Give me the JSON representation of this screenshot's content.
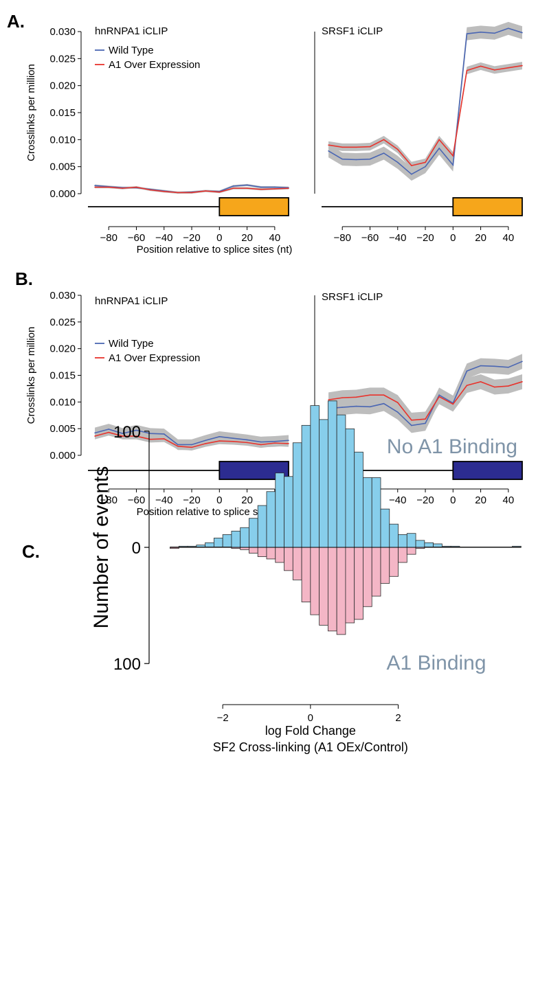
{
  "panels": {
    "A": {
      "label": "A."
    },
    "B": {
      "label": "B."
    },
    "C": {
      "label": "C."
    }
  },
  "chart_data": [
    {
      "id": "A1",
      "type": "line",
      "panel": "A",
      "title": "hnRNPA1 iCLIP",
      "ylabel": "Crosslinks per million",
      "xlabel": "Position relative to splice sites (nt)",
      "ylim": [
        0,
        0.03
      ],
      "xlim": [
        -95,
        50
      ],
      "yticks": [
        "0.000",
        "0.005",
        "0.010",
        "0.015",
        "0.020",
        "0.025",
        "0.030"
      ],
      "xticks": [
        "−80",
        "−60",
        "−40",
        "−20",
        "0",
        "20",
        "40"
      ],
      "exon_color": "#f6a61b",
      "legend": [
        {
          "name": "Wild Type",
          "color": "#4a66b3"
        },
        {
          "name": "A1 Over Expression",
          "color": "#e8332c"
        }
      ],
      "x": [
        -90,
        -80,
        -70,
        -60,
        -50,
        -40,
        -30,
        -20,
        -10,
        0,
        10,
        20,
        30,
        40,
        50
      ],
      "series": [
        {
          "name": "Wild Type",
          "color": "#4a66b3",
          "band": 0.0002,
          "values": [
            0.0015,
            0.0013,
            0.0011,
            0.0011,
            0.0008,
            0.0005,
            0.0002,
            0.0003,
            0.0005,
            0.0004,
            0.0014,
            0.0016,
            0.0012,
            0.0012,
            0.0011
          ]
        },
        {
          "name": "A1 Over Expression",
          "color": "#e8332c",
          "band": 0.0002,
          "values": [
            0.0012,
            0.0012,
            0.001,
            0.0012,
            0.0007,
            0.0004,
            0.0002,
            0.0002,
            0.0005,
            0.0003,
            0.001,
            0.001,
            0.0008,
            0.0009,
            0.001
          ]
        }
      ]
    },
    {
      "id": "A2",
      "type": "line",
      "panel": "A",
      "title": "SRSF1 iCLIP",
      "ylim": [
        0,
        0.03
      ],
      "xlim": [
        -95,
        50
      ],
      "xticks": [
        "−80",
        "−60",
        "−40",
        "−20",
        "0",
        "20",
        "40"
      ],
      "exon_color": "#f6a61b",
      "x": [
        -90,
        -80,
        -70,
        -60,
        -50,
        -40,
        -30,
        -20,
        -10,
        0,
        10,
        20,
        30,
        40,
        50
      ],
      "series": [
        {
          "name": "Wild Type",
          "color": "#4a66b3",
          "band": 0.0012,
          "values": [
            0.0079,
            0.0064,
            0.0063,
            0.0064,
            0.0075,
            0.0058,
            0.0036,
            0.005,
            0.0084,
            0.0053,
            0.0296,
            0.0299,
            0.0297,
            0.0306,
            0.0298
          ]
        },
        {
          "name": "A1 Over Expression",
          "color": "#e8332c",
          "band": 0.0007,
          "values": [
            0.009,
            0.0086,
            0.0086,
            0.0087,
            0.01,
            0.0082,
            0.0052,
            0.0058,
            0.01,
            0.007,
            0.0228,
            0.0236,
            0.0229,
            0.0233,
            0.0237
          ]
        }
      ]
    },
    {
      "id": "B1",
      "type": "line",
      "panel": "B",
      "title": "hnRNPA1 iCLIP",
      "ylabel": "Crosslinks per million",
      "xlabel": "Position relative to splice sites (nt)",
      "ylim": [
        0,
        0.03
      ],
      "xlim": [
        -95,
        50
      ],
      "yticks": [
        "0.000",
        "0.005",
        "0.010",
        "0.015",
        "0.020",
        "0.025",
        "0.030"
      ],
      "xticks": [
        "−80",
        "−60",
        "−40",
        "−20",
        "0",
        "20",
        "40"
      ],
      "exon_color": "#2c2c91",
      "legend": [
        {
          "name": "Wild Type",
          "color": "#4a66b3"
        },
        {
          "name": "A1 Over Expression",
          "color": "#e8332c"
        }
      ],
      "x": [
        -90,
        -80,
        -70,
        -60,
        -50,
        -40,
        -30,
        -20,
        -10,
        0,
        10,
        20,
        30,
        40,
        50
      ],
      "series": [
        {
          "name": "Wild Type",
          "color": "#4a66b3",
          "band": 0.001,
          "values": [
            0.0042,
            0.0049,
            0.0041,
            0.0047,
            0.0041,
            0.004,
            0.002,
            0.002,
            0.0028,
            0.0035,
            0.0032,
            0.0029,
            0.0025,
            0.0026,
            0.0028
          ]
        },
        {
          "name": "A1 Over Expression",
          "color": "#e8332c",
          "band": 0.0006,
          "values": [
            0.0036,
            0.0043,
            0.0036,
            0.0036,
            0.003,
            0.0031,
            0.0017,
            0.0015,
            0.0022,
            0.0027,
            0.0026,
            0.0024,
            0.002,
            0.0023,
            0.0022
          ]
        }
      ]
    },
    {
      "id": "B2",
      "type": "line",
      "panel": "B",
      "title": "SRSF1 iCLIP",
      "ylim": [
        0,
        0.03
      ],
      "xlim": [
        -95,
        50
      ],
      "xticks": [
        "−80",
        "−60",
        "−40",
        "−20",
        "0",
        "20",
        "40"
      ],
      "exon_color": "#2c2c91",
      "x": [
        -90,
        -80,
        -70,
        -60,
        -50,
        -40,
        -30,
        -20,
        -10,
        0,
        10,
        20,
        30,
        40,
        50
      ],
      "series": [
        {
          "name": "Wild Type",
          "color": "#4a66b3",
          "band": 0.0014,
          "values": [
            0.0088,
            0.009,
            0.0092,
            0.0091,
            0.0097,
            0.0081,
            0.0056,
            0.006,
            0.0113,
            0.0098,
            0.0158,
            0.0168,
            0.0167,
            0.0165,
            0.0176
          ]
        },
        {
          "name": "A1 Over Expression",
          "color": "#e8332c",
          "band": 0.0014,
          "values": [
            0.0104,
            0.0108,
            0.0109,
            0.0113,
            0.0113,
            0.0099,
            0.0066,
            0.0068,
            0.011,
            0.0096,
            0.0131,
            0.0138,
            0.0128,
            0.013,
            0.0138
          ]
        }
      ]
    },
    {
      "id": "C",
      "type": "bar",
      "panel": "C",
      "xlabel": "log Fold Change",
      "xlabel2": "SF2 Cross-linking (A1 OEx/Control)",
      "ylabel": "Number of events",
      "xlim": [
        -3.6,
        4.2
      ],
      "ylim": [
        -100,
        100
      ],
      "xticks": [
        "−2",
        "0",
        "2"
      ],
      "yticks": [
        "100",
        "0",
        "100"
      ],
      "annotations": {
        "top": "No A1 Binding",
        "bottom": "A1 Binding"
      },
      "bin_start": -3.2,
      "bin_width": 0.2,
      "series": [
        {
          "name": "No A1 Binding",
          "color": "#87ceeb",
          "values": [
            0,
            1,
            1,
            2,
            4,
            8,
            11,
            14,
            17,
            25,
            36,
            48,
            64,
            61,
            90,
            105,
            122,
            110,
            126,
            114,
            102,
            82,
            60,
            60,
            33,
            20,
            11,
            12,
            6,
            4,
            3,
            1,
            1,
            0,
            0,
            0,
            0,
            0,
            0,
            1
          ]
        },
        {
          "name": "A1 Binding",
          "color": "#f4b6c6",
          "values": [
            -1,
            0,
            0,
            0,
            0,
            0,
            0,
            -1,
            -2,
            -5,
            -8,
            -10,
            -13,
            -20,
            -28,
            -47,
            -58,
            -67,
            -72,
            -75,
            -65,
            -62,
            -51,
            -42,
            -31,
            -25,
            -13,
            -6,
            -1,
            0,
            0,
            0,
            0,
            0,
            0,
            0,
            0,
            0,
            0,
            0
          ]
        }
      ]
    }
  ]
}
